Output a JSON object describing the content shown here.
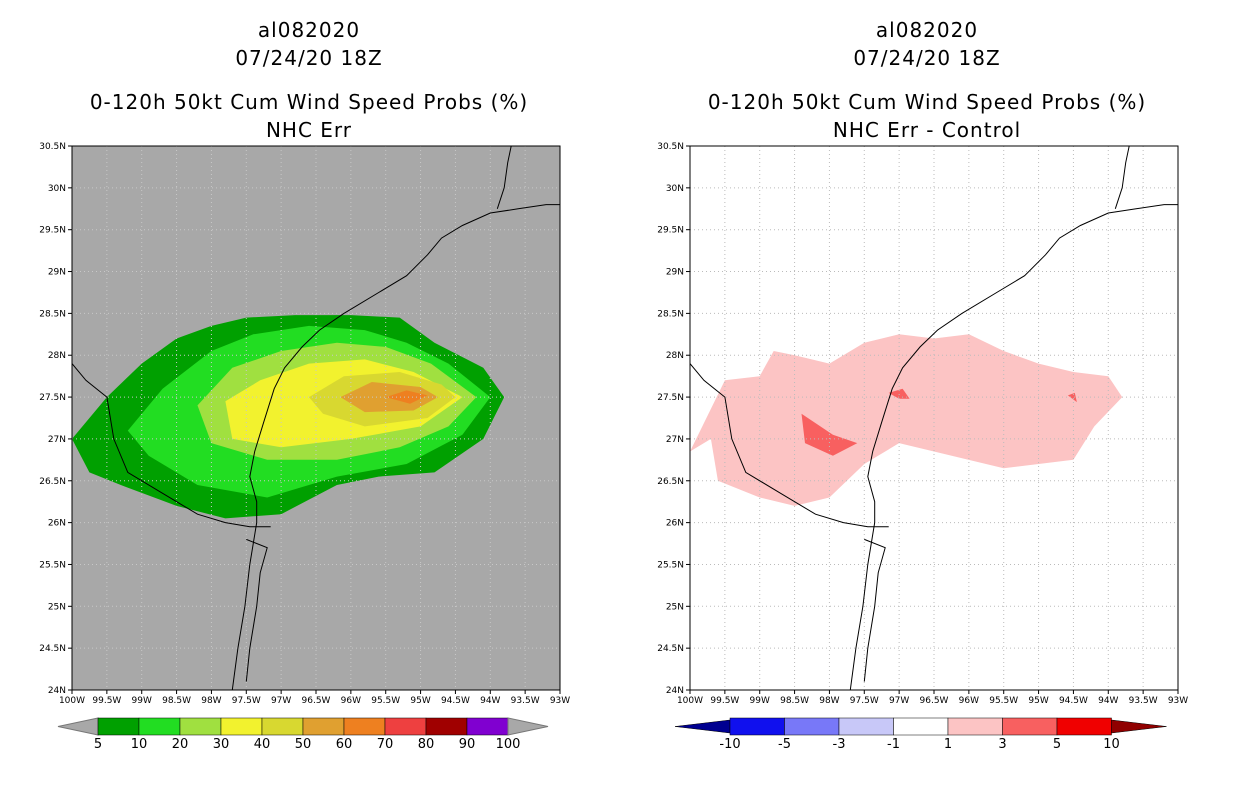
{
  "chart_data": [
    {
      "type": "contour-map",
      "storm_id": "al082020",
      "datetime": "07/24/20 18Z",
      "title": "0-120h 50kt Cum Wind Speed Probs (%)",
      "subtitle": "NHC Err",
      "x_ticks": [
        "100W",
        "99.5W",
        "99W",
        "98.5W",
        "98W",
        "97.5W",
        "97W",
        "96.5W",
        "96W",
        "95.5W",
        "95W",
        "94.5W",
        "94W",
        "93.5W",
        "93W"
      ],
      "y_ticks": [
        "30.5N",
        "30N",
        "29.5N",
        "29N",
        "28.5N",
        "28N",
        "27.5N",
        "27N",
        "26.5N",
        "26N",
        "25.5N",
        "25N",
        "24.5N",
        "24N"
      ],
      "xlim": [
        -100,
        -93
      ],
      "ylim": [
        24,
        30.5
      ],
      "background": "#a8a8a8",
      "contours": [
        {
          "level": 5,
          "color": "#00a000",
          "poly": [
            [
              -100,
              27
            ],
            [
              -99.5,
              27.5
            ],
            [
              -99,
              27.9
            ],
            [
              -98.5,
              28.2
            ],
            [
              -98,
              28.35
            ],
            [
              -97.5,
              28.45
            ],
            [
              -96.8,
              28.48
            ],
            [
              -96,
              28.48
            ],
            [
              -95.3,
              28.45
            ],
            [
              -94.8,
              28.15
            ],
            [
              -94.1,
              27.85
            ],
            [
              -93.8,
              27.5
            ],
            [
              -94.1,
              27.0
            ],
            [
              -94.8,
              26.6
            ],
            [
              -95.6,
              26.55
            ],
            [
              -96.2,
              26.45
            ],
            [
              -97,
              26.1
            ],
            [
              -97.8,
              26.05
            ],
            [
              -98.5,
              26.2
            ],
            [
              -99.3,
              26.45
            ],
            [
              -99.75,
              26.6
            ]
          ]
        },
        {
          "level": 10,
          "color": "#22dd22",
          "poly": [
            [
              -99.2,
              27.1
            ],
            [
              -98.7,
              27.6
            ],
            [
              -98.0,
              28.05
            ],
            [
              -97.4,
              28.25
            ],
            [
              -96.6,
              28.35
            ],
            [
              -95.8,
              28.3
            ],
            [
              -95.2,
              28.15
            ],
            [
              -94.6,
              27.9
            ],
            [
              -94.0,
              27.5
            ],
            [
              -94.4,
              27.05
            ],
            [
              -95.2,
              26.7
            ],
            [
              -96.2,
              26.55
            ],
            [
              -97.2,
              26.3
            ],
            [
              -98.2,
              26.45
            ],
            [
              -98.9,
              26.8
            ]
          ]
        },
        {
          "level": 20,
          "color": "#a0e040",
          "poly": [
            [
              -98.2,
              27.4
            ],
            [
              -97.7,
              27.85
            ],
            [
              -97,
              28.05
            ],
            [
              -96.2,
              28.15
            ],
            [
              -95.5,
              28.1
            ],
            [
              -94.85,
              27.9
            ],
            [
              -94.2,
              27.5
            ],
            [
              -94.6,
              27.15
            ],
            [
              -95.3,
              26.9
            ],
            [
              -96.2,
              26.75
            ],
            [
              -97.2,
              26.75
            ],
            [
              -98.0,
              26.95
            ]
          ]
        },
        {
          "level": 30,
          "color": "#f2f22e",
          "poly": [
            [
              -97.8,
              27.45
            ],
            [
              -97.3,
              27.7
            ],
            [
              -96.6,
              27.9
            ],
            [
              -95.8,
              27.95
            ],
            [
              -95.1,
              27.8
            ],
            [
              -94.4,
              27.5
            ],
            [
              -95.0,
              27.15
            ],
            [
              -96.0,
              27.0
            ],
            [
              -97.0,
              26.9
            ],
            [
              -97.7,
              27.0
            ]
          ]
        },
        {
          "level": 40,
          "color": "#d8d830",
          "poly": [
            [
              -96.6,
              27.5
            ],
            [
              -96.1,
              27.75
            ],
            [
              -95.3,
              27.8
            ],
            [
              -94.7,
              27.65
            ],
            [
              -94.5,
              27.5
            ],
            [
              -94.9,
              27.25
            ],
            [
              -95.8,
              27.15
            ],
            [
              -96.4,
              27.3
            ]
          ]
        },
        {
          "level": 50,
          "color": "#e0a030",
          "poly": [
            [
              -96.15,
              27.5
            ],
            [
              -95.7,
              27.68
            ],
            [
              -95.0,
              27.62
            ],
            [
              -94.75,
              27.5
            ],
            [
              -95.1,
              27.34
            ],
            [
              -95.8,
              27.32
            ]
          ]
        },
        {
          "level": 60,
          "color": "#ee8020",
          "poly": [
            [
              -95.5,
              27.5
            ],
            [
              -95.2,
              27.58
            ],
            [
              -94.9,
              27.52
            ],
            [
              -95.15,
              27.42
            ]
          ]
        }
      ],
      "colorbar": {
        "labels": [
          "5",
          "10",
          "20",
          "30",
          "40",
          "50",
          "60",
          "70",
          "80",
          "90",
          "100"
        ],
        "colors": [
          "#00a000",
          "#22dd22",
          "#a0e040",
          "#f2f22e",
          "#d8d830",
          "#e0a030",
          "#ee8020",
          "#ee4040",
          "#a00000",
          "#8000d0"
        ]
      }
    },
    {
      "type": "contour-map",
      "storm_id": "al082020",
      "datetime": "07/24/20 18Z",
      "title": "0-120h 50kt Cum Wind Speed Probs (%)",
      "subtitle": "NHC Err - Control",
      "x_ticks": [
        "100W",
        "99.5W",
        "99W",
        "98.5W",
        "98W",
        "97.5W",
        "97W",
        "96.5W",
        "96W",
        "95.5W",
        "95W",
        "94.5W",
        "94W",
        "93.5W",
        "93W"
      ],
      "y_ticks": [
        "30.5N",
        "30N",
        "29.5N",
        "29N",
        "28.5N",
        "28N",
        "27.5N",
        "27N",
        "26.5N",
        "26N",
        "25.5N",
        "25N",
        "24.5N",
        "24N"
      ],
      "xlim": [
        -100,
        -93
      ],
      "ylim": [
        24,
        30.5
      ],
      "background": "#ffffff",
      "contours": [
        {
          "level": 1,
          "color": "#fcc4c4",
          "poly": [
            [
              -100,
              26.85
            ],
            [
              -99.5,
              27.7
            ],
            [
              -99,
              27.75
            ],
            [
              -98.8,
              28.05
            ],
            [
              -98.5,
              28.0
            ],
            [
              -98,
              27.9
            ],
            [
              -97.5,
              28.15
            ],
            [
              -97,
              28.25
            ],
            [
              -96.5,
              28.2
            ],
            [
              -96,
              28.25
            ],
            [
              -95.5,
              28.05
            ],
            [
              -95,
              27.9
            ],
            [
              -94.5,
              27.8
            ],
            [
              -94,
              27.75
            ],
            [
              -93.8,
              27.5
            ],
            [
              -94.2,
              27.15
            ],
            [
              -94.5,
              26.75
            ],
            [
              -95,
              26.7
            ],
            [
              -95.5,
              26.65
            ],
            [
              -96.5,
              26.85
            ],
            [
              -97,
              26.95
            ],
            [
              -97.5,
              26.7
            ],
            [
              -98,
              26.3
            ],
            [
              -98.5,
              26.2
            ],
            [
              -99,
              26.3
            ],
            [
              -99.6,
              26.5
            ],
            [
              -99.7,
              27
            ]
          ]
        },
        {
          "level": 3,
          "color": "#f86060",
          "poly": [
            [
              -98.4,
              27.3
            ],
            [
              -97.95,
              27.05
            ],
            [
              -97.6,
              26.95
            ],
            [
              -97.95,
              26.8
            ],
            [
              -98.35,
              26.95
            ]
          ]
        },
        {
          "level": 3,
          "color": "#f86060",
          "poly": [
            [
              -97.15,
              27.55
            ],
            [
              -96.95,
              27.6
            ],
            [
              -96.85,
              27.48
            ],
            [
              -97.0,
              27.48
            ]
          ]
        },
        {
          "level": 3,
          "color": "#f86060",
          "poly": [
            [
              -94.58,
              27.52
            ],
            [
              -94.48,
              27.55
            ],
            [
              -94.45,
              27.44
            ]
          ]
        }
      ],
      "colorbar": {
        "labels": [
          "-10",
          "-5",
          "-3",
          "-1",
          "1",
          "3",
          "5",
          "10"
        ],
        "colors": [
          "#000090",
          "#1010ee",
          "#7878f8",
          "#c8c8f8",
          "#ffffff",
          "#fcc4c4",
          "#f86060",
          "#f00000",
          "#900000"
        ]
      }
    }
  ]
}
